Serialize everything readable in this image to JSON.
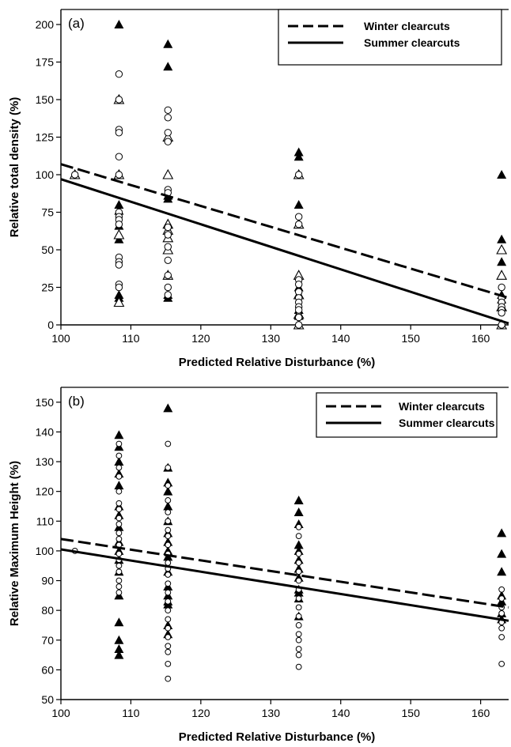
{
  "chart_data": [
    {
      "type": "scatter",
      "panel_label": "(a)",
      "xlabel": "Predicted Relative Disturbance (%)",
      "ylabel": "Relative total density (%)",
      "xlim": [
        100,
        164
      ],
      "ylim": [
        0,
        210
      ],
      "xticks": [
        100,
        110,
        120,
        130,
        140,
        150,
        160
      ],
      "yticks": [
        0,
        25,
        50,
        75,
        100,
        125,
        150,
        175,
        200
      ],
      "grid": false,
      "legend_position": "top-right",
      "legend": [
        {
          "label": "Winter clearcuts",
          "style": "dashed"
        },
        {
          "label": "Summer clearcuts",
          "style": "solid"
        }
      ],
      "trend_lines": [
        {
          "name": "Winter clearcuts",
          "style": "dashed",
          "x": [
            100,
            164
          ],
          "y": [
            107,
            18
          ]
        },
        {
          "name": "Summer clearcuts",
          "style": "solid",
          "x": [
            100,
            164
          ],
          "y": [
            97,
            1
          ]
        }
      ],
      "series": [
        {
          "marker": "filled-triangle",
          "points": [
            [
              108.3,
              200
            ],
            [
              108.3,
              80
            ],
            [
              108.3,
              76
            ],
            [
              108.3,
              66
            ],
            [
              108.3,
              57
            ],
            [
              108.3,
              20
            ],
            [
              108.3,
              18
            ],
            [
              115.3,
              187
            ],
            [
              115.3,
              172
            ],
            [
              115.3,
              86
            ],
            [
              115.3,
              84
            ],
            [
              115.3,
              20
            ],
            [
              115.3,
              18
            ],
            [
              134,
              115
            ],
            [
              134,
              112
            ],
            [
              134,
              80
            ],
            [
              134,
              67
            ],
            [
              134,
              33
            ],
            [
              134,
              25
            ],
            [
              134,
              10
            ],
            [
              134,
              6
            ],
            [
              163,
              100
            ],
            [
              163,
              57
            ],
            [
              163,
              42
            ],
            [
              163,
              20
            ],
            [
              163,
              17
            ]
          ]
        },
        {
          "marker": "open-triangle",
          "points": [
            [
              102,
              100
            ],
            [
              108.3,
              150
            ],
            [
              108.3,
              100
            ],
            [
              108.3,
              60
            ],
            [
              108.3,
              15
            ],
            [
              115.3,
              125
            ],
            [
              115.3,
              100
            ],
            [
              115.3,
              67
            ],
            [
              115.3,
              63
            ],
            [
              115.3,
              58
            ],
            [
              115.3,
              50
            ],
            [
              115.3,
              33
            ],
            [
              134,
              100
            ],
            [
              134,
              67
            ],
            [
              134,
              33
            ],
            [
              134,
              20
            ],
            [
              134,
              7
            ],
            [
              134,
              0
            ],
            [
              163,
              50
            ],
            [
              163,
              33
            ],
            [
              163,
              12
            ],
            [
              163,
              0
            ]
          ]
        },
        {
          "marker": "open-circle",
          "points": [
            [
              102,
              100
            ],
            [
              108.3,
              167
            ],
            [
              108.3,
              150
            ],
            [
              108.3,
              130
            ],
            [
              108.3,
              128
            ],
            [
              108.3,
              112
            ],
            [
              108.3,
              100
            ],
            [
              108.3,
              75
            ],
            [
              108.3,
              72
            ],
            [
              108.3,
              70
            ],
            [
              108.3,
              67
            ],
            [
              108.3,
              45
            ],
            [
              108.3,
              42
            ],
            [
              108.3,
              40
            ],
            [
              108.3,
              27
            ],
            [
              108.3,
              25
            ],
            [
              115.3,
              143
            ],
            [
              115.3,
              138
            ],
            [
              115.3,
              128
            ],
            [
              115.3,
              122
            ],
            [
              115.3,
              90
            ],
            [
              115.3,
              88
            ],
            [
              115.3,
              65
            ],
            [
              115.3,
              60
            ],
            [
              115.3,
              52
            ],
            [
              115.3,
              43
            ],
            [
              115.3,
              33
            ],
            [
              115.3,
              25
            ],
            [
              115.3,
              20
            ],
            [
              134,
              100
            ],
            [
              134,
              72
            ],
            [
              134,
              67
            ],
            [
              134,
              30
            ],
            [
              134,
              27
            ],
            [
              134,
              22
            ],
            [
              134,
              18
            ],
            [
              134,
              15
            ],
            [
              134,
              12
            ],
            [
              134,
              10
            ],
            [
              134,
              5
            ],
            [
              134,
              0
            ],
            [
              163,
              25
            ],
            [
              163,
              18
            ],
            [
              163,
              15
            ],
            [
              163,
              12
            ],
            [
              163,
              10
            ],
            [
              163,
              8
            ],
            [
              163,
              0
            ]
          ]
        }
      ]
    },
    {
      "type": "scatter",
      "panel_label": "(b)",
      "xlabel": "Predicted Relative Disturbance (%)",
      "ylabel": "Relative Maximum Height (%)",
      "xlim": [
        100,
        164
      ],
      "ylim": [
        50,
        155
      ],
      "xticks": [
        100,
        110,
        120,
        130,
        140,
        150,
        160
      ],
      "yticks": [
        50,
        60,
        70,
        80,
        90,
        100,
        110,
        120,
        130,
        140,
        150
      ],
      "grid": false,
      "legend_position": "top-right",
      "legend": [
        {
          "label": "Winter clearcuts",
          "style": "dashed"
        },
        {
          "label": "Summer clearcuts",
          "style": "solid"
        }
      ],
      "trend_lines": [
        {
          "name": "Winter clearcuts",
          "style": "dashed",
          "x": [
            100,
            164
          ],
          "y": [
            104,
            81
          ]
        },
        {
          "name": "Summer clearcuts",
          "style": "solid",
          "x": [
            100,
            164
          ],
          "y": [
            100.5,
            76.5
          ]
        }
      ],
      "series": [
        {
          "marker": "filled-triangle",
          "points": [
            [
              108.3,
              139
            ],
            [
              108.3,
              135
            ],
            [
              108.3,
              130
            ],
            [
              108.3,
              126
            ],
            [
              108.3,
              122
            ],
            [
              108.3,
              115
            ],
            [
              108.3,
              112
            ],
            [
              108.3,
              108
            ],
            [
              108.3,
              103
            ],
            [
              108.3,
              100
            ],
            [
              108.3,
              97
            ],
            [
              108.3,
              93
            ],
            [
              108.3,
              85
            ],
            [
              108.3,
              76
            ],
            [
              108.3,
              70
            ],
            [
              108.3,
              67
            ],
            [
              108.3,
              65
            ],
            [
              115.3,
              148
            ],
            [
              115.3,
              128
            ],
            [
              115.3,
              123
            ],
            [
              115.3,
              120
            ],
            [
              115.3,
              115
            ],
            [
              115.3,
              110
            ],
            [
              115.3,
              106
            ],
            [
              115.3,
              103
            ],
            [
              115.3,
              100
            ],
            [
              115.3,
              98
            ],
            [
              115.3,
              93
            ],
            [
              115.3,
              88
            ],
            [
              115.3,
              85
            ],
            [
              115.3,
              83
            ],
            [
              115.3,
              82
            ],
            [
              115.3,
              75
            ],
            [
              115.3,
              72
            ],
            [
              134,
              117
            ],
            [
              134,
              113
            ],
            [
              134,
              109
            ],
            [
              134,
              102
            ],
            [
              134,
              100
            ],
            [
              134,
              97
            ],
            [
              134,
              94
            ],
            [
              134,
              91
            ],
            [
              134,
              87
            ],
            [
              134,
              86
            ],
            [
              134,
              84
            ],
            [
              134,
              78
            ],
            [
              163,
              106
            ],
            [
              163,
              99
            ],
            [
              163,
              93
            ],
            [
              163,
              85
            ],
            [
              163,
              83
            ],
            [
              163,
              79
            ],
            [
              163,
              77
            ]
          ]
        },
        {
          "marker": "open-circle",
          "points": [
            [
              102,
              100
            ],
            [
              108.3,
              136
            ],
            [
              108.3,
              132
            ],
            [
              108.3,
              128
            ],
            [
              108.3,
              125
            ],
            [
              108.3,
              120
            ],
            [
              108.3,
              116
            ],
            [
              108.3,
              114
            ],
            [
              108.3,
              111
            ],
            [
              108.3,
              109
            ],
            [
              108.3,
              106
            ],
            [
              108.3,
              104
            ],
            [
              108.3,
              102
            ],
            [
              108.3,
              99
            ],
            [
              108.3,
              97
            ],
            [
              108.3,
              95
            ],
            [
              108.3,
              93
            ],
            [
              108.3,
              90
            ],
            [
              108.3,
              88
            ],
            [
              108.3,
              86
            ],
            [
              115.3,
              136
            ],
            [
              115.3,
              128
            ],
            [
              115.3,
              122
            ],
            [
              115.3,
              117
            ],
            [
              115.3,
              113
            ],
            [
              115.3,
              110
            ],
            [
              115.3,
              107
            ],
            [
              115.3,
              105
            ],
            [
              115.3,
              102
            ],
            [
              115.3,
              99
            ],
            [
              115.3,
              96
            ],
            [
              115.3,
              94
            ],
            [
              115.3,
              92
            ],
            [
              115.3,
              89
            ],
            [
              115.3,
              86
            ],
            [
              115.3,
              83
            ],
            [
              115.3,
              80
            ],
            [
              115.3,
              77
            ],
            [
              115.3,
              74
            ],
            [
              115.3,
              71
            ],
            [
              115.3,
              68
            ],
            [
              115.3,
              66
            ],
            [
              115.3,
              62
            ],
            [
              115.3,
              57
            ],
            [
              134,
              108
            ],
            [
              134,
              105
            ],
            [
              134,
              99
            ],
            [
              134,
              96
            ],
            [
              134,
              93
            ],
            [
              134,
              90
            ],
            [
              134,
              87
            ],
            [
              134,
              84
            ],
            [
              134,
              81
            ],
            [
              134,
              78
            ],
            [
              134,
              75
            ],
            [
              134,
              72
            ],
            [
              134,
              70
            ],
            [
              134,
              67
            ],
            [
              134,
              65
            ],
            [
              134,
              61
            ],
            [
              163,
              87
            ],
            [
              163,
              84
            ],
            [
              163,
              81
            ],
            [
              163,
              79
            ],
            [
              163,
              76
            ],
            [
              163,
              74
            ],
            [
              163,
              71
            ],
            [
              163,
              62
            ]
          ]
        }
      ]
    }
  ]
}
